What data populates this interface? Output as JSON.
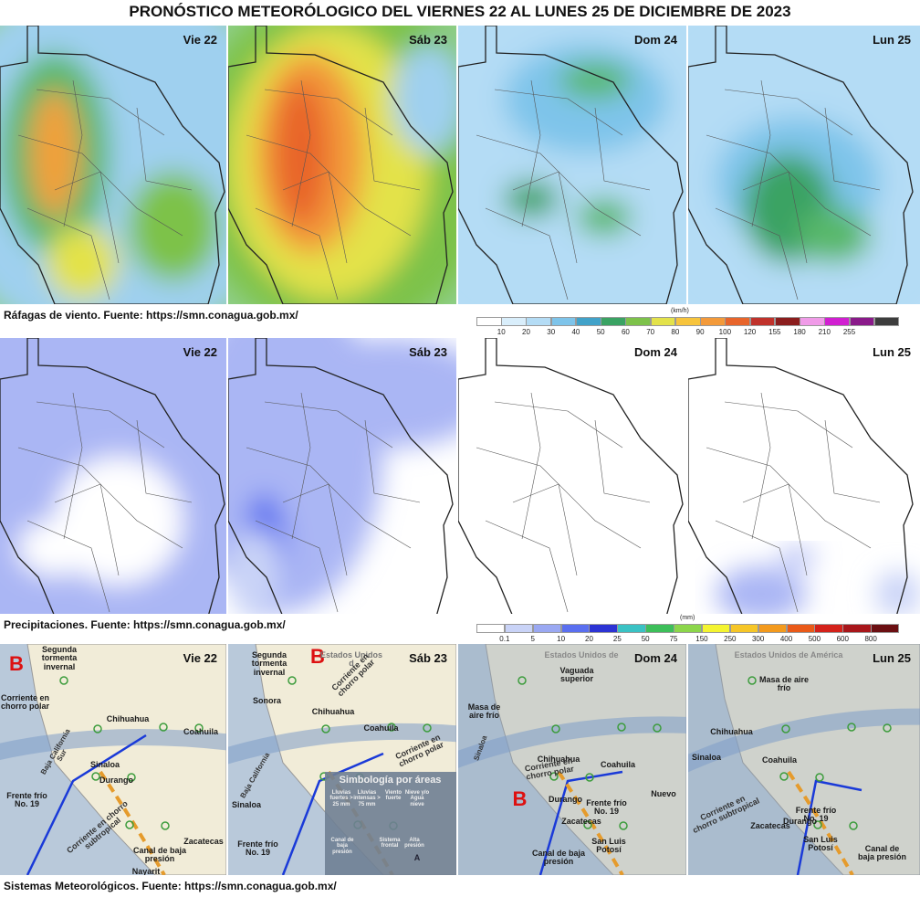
{
  "title": "PRONÓSTICO METEORÓLOGICO DEL VIERNES 22 AL LUNES 25 DE DICIEMBRE DE 2023",
  "sections": [
    {
      "days": [
        "Vie 22",
        "Sáb 23",
        "Dom 24",
        "Lun 25"
      ],
      "caption": "Ráfagas de viento.  Fuente: https://smn.conagua.gob.mx/",
      "scale": {
        "unit": "(km/h)",
        "labels": [
          10,
          20,
          30,
          40,
          50,
          60,
          70,
          80,
          90,
          100,
          120,
          155,
          180,
          210,
          255
        ],
        "colors": [
          "#ffffff",
          "#d9eefb",
          "#b4dcf5",
          "#7ec4ea",
          "#41a2c9",
          "#3aa363",
          "#7dc24a",
          "#e3e24a",
          "#f7c43c",
          "#f39a3a",
          "#e8652b",
          "#c0322b",
          "#8b1d1d",
          "#f09be8",
          "#d11fd1",
          "#8a1a8a",
          "#3d3d3d"
        ]
      }
    },
    {
      "days": [
        "Vie 22",
        "Sáb 23",
        "Dom 24",
        "Lun 25"
      ],
      "caption": "Precipitaciones.  Fuente: https://smn.conagua.gob.mx/",
      "scale": {
        "unit": "(mm)",
        "labels": [
          0.1,
          5,
          10,
          20,
          25,
          50,
          75,
          150,
          250,
          300,
          400,
          500,
          600,
          800
        ],
        "colors": [
          "#ffffff",
          "#c9d3f7",
          "#9aa8f2",
          "#5a6ff0",
          "#2c33d4",
          "#3ac2c4",
          "#3dbf5a",
          "#8cd64b",
          "#f4f430",
          "#f6c627",
          "#f39a1d",
          "#ea5a18",
          "#d4221a",
          "#a8161a",
          "#6b0f12"
        ]
      }
    },
    {
      "days": [
        "Vie 22",
        "Sáb 23",
        "Dom 24",
        "Lun 25"
      ],
      "caption": "Sistemas Meteorológicos.    Fuente: https://smn.conagua.gob.mx/",
      "panels": [
        {
          "annotations": [
            "B",
            "Segunda tormenta invernal",
            "Corriente en chorro polar",
            "Chihuahua",
            "Coahuila",
            "Baja California Sur",
            "Sinaloa",
            "Durango",
            "Frente frío No. 19",
            "Corriente en chorro subtropical",
            "Canal de baja presión",
            "Zacatecas",
            "Nayarit"
          ]
        },
        {
          "annotations": [
            "B",
            "Segunda tormenta invernal",
            "Estados Unidos d",
            "Corriente en chorro polar",
            "Sonora",
            "Chihuahua",
            "Coahuila",
            "Corriente en chorro polar",
            "Baja California",
            "Sinaloa",
            "Frente frío No. 19",
            "Simbología por áreas",
            "Lluvias fuertes > 25 mm",
            "Lluvias intensas > 75 mm",
            "Viento fuerte",
            "Nieve y/o Agua nieve",
            "Canal de baja presión",
            "Sistema frontal",
            "Alta presión",
            "A"
          ]
        },
        {
          "annotations": [
            "Estados Unidos de",
            "Vaguada superior",
            "Masa de aire frío",
            "Chihuahua",
            "Coahuila",
            "Corriente en chorro polar",
            "B",
            "Durango",
            "Frente frío No. 19",
            "Nuevo",
            "Sinaloa",
            "Canal de baja presión",
            "Zacatecas",
            "San Luis Potosí"
          ]
        },
        {
          "annotations": [
            "Estados Unidos de América",
            "Masa de aire frío",
            "Chihuahua",
            "Coahuila",
            "Sinaloa",
            "Corriente en chorro subtropical",
            "Frente frío No. 19",
            "Zacatecas",
            "San Luis Potosí",
            "Canal de baja presión",
            "Durango"
          ]
        }
      ]
    }
  ]
}
